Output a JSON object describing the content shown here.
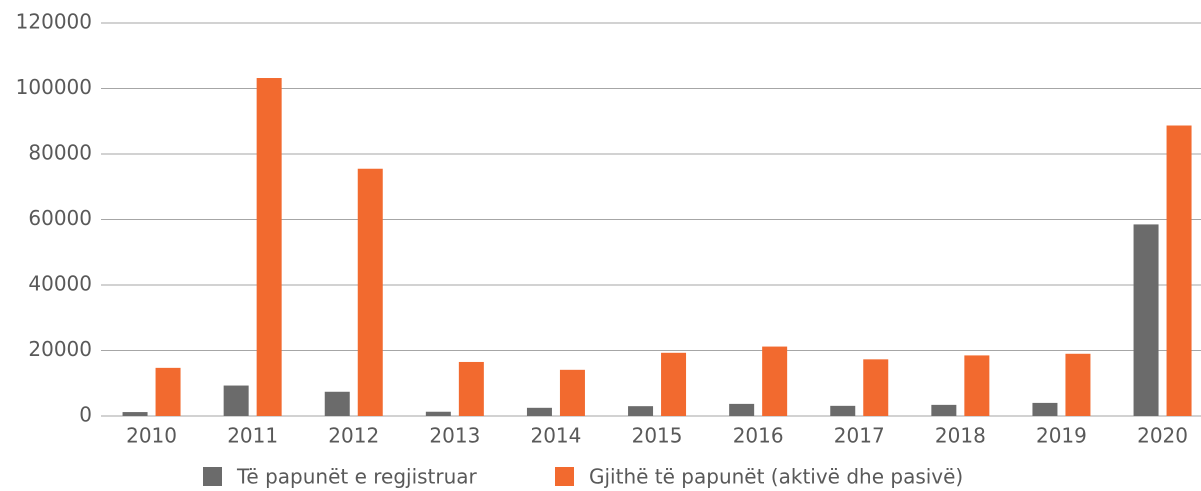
{
  "chart_data": {
    "type": "bar",
    "categories": [
      "2010",
      "2011",
      "2012",
      "2013",
      "2014",
      "2015",
      "2016",
      "2017",
      "2018",
      "2019",
      "2020"
    ],
    "series": [
      {
        "name": "Të papunët e regjistruar",
        "color": "#6b6b6b",
        "values": [
          1200,
          9300,
          7400,
          1300,
          2500,
          3000,
          3700,
          3100,
          3400,
          4000,
          58500
        ]
      },
      {
        "name": "Gjithë të papunët (aktivë dhe pasivë)",
        "color": "#f26a2f",
        "values": [
          14700,
          103200,
          75500,
          16500,
          14100,
          19300,
          21200,
          17300,
          18500,
          19000,
          88700
        ]
      }
    ],
    "ylim": [
      0,
      120000
    ],
    "yticks": [
      0,
      20000,
      40000,
      60000,
      80000,
      100000,
      120000
    ],
    "grid": true,
    "legend": "bottom"
  }
}
